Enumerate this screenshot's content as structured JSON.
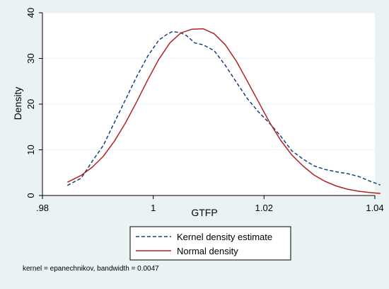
{
  "chart_data": {
    "type": "line",
    "xlabel": "GTFP",
    "ylabel": "Density",
    "xlim": [
      0.98,
      1.04
    ],
    "ylim": [
      0,
      40
    ],
    "x_ticks": [
      0.98,
      1.0,
      1.02,
      1.04
    ],
    "x_tick_labels": [
      ".98",
      "1",
      "1.02",
      "1.04"
    ],
    "y_ticks": [
      0,
      10,
      20,
      30,
      40
    ],
    "y_tick_labels": [
      "0",
      "10",
      "20",
      "30",
      "40"
    ],
    "grid": "horizontal",
    "legend_position": "bottom",
    "note": "kernel = epanechnikov, bandwidth = 0.0047",
    "series": [
      {
        "name": "Kernel density estimate",
        "style": "dashed",
        "color": "#1a3f7a",
        "x": [
          0.9845,
          0.987,
          0.989,
          0.991,
          0.993,
          0.995,
          0.997,
          0.999,
          1.001,
          1.0025,
          1.0035,
          1.005,
          1.006,
          1.0075,
          1.009,
          1.011,
          1.013,
          1.015,
          1.017,
          1.019,
          1.021,
          1.023,
          1.025,
          1.027,
          1.029,
          1.031,
          1.033,
          1.035,
          1.037,
          1.039,
          1.041
        ],
        "y": [
          2.2,
          3.8,
          7.5,
          11.0,
          16.0,
          21.0,
          26.0,
          30.5,
          34.0,
          35.3,
          35.9,
          35.6,
          35.0,
          33.4,
          33.0,
          31.7,
          28.5,
          24.8,
          21.2,
          18.3,
          15.8,
          13.0,
          9.8,
          8.0,
          6.5,
          5.7,
          5.2,
          4.8,
          4.2,
          3.2,
          2.3
        ]
      },
      {
        "name": "Normal density",
        "style": "solid",
        "color": "#b22222",
        "x": [
          0.9845,
          0.987,
          0.989,
          0.991,
          0.993,
          0.995,
          0.997,
          0.999,
          1.001,
          1.003,
          1.005,
          1.007,
          1.009,
          1.011,
          1.013,
          1.015,
          1.017,
          1.019,
          1.021,
          1.023,
          1.025,
          1.027,
          1.029,
          1.031,
          1.033,
          1.035,
          1.037,
          1.039,
          1.041
        ],
        "y": [
          2.9,
          4.4,
          6.2,
          8.6,
          11.9,
          15.9,
          20.5,
          25.3,
          29.8,
          33.4,
          35.6,
          36.4,
          36.5,
          35.4,
          33.0,
          29.4,
          25.0,
          20.5,
          16.0,
          12.1,
          8.9,
          6.5,
          4.5,
          3.1,
          2.1,
          1.4,
          0.95,
          0.65,
          0.45
        ]
      }
    ]
  }
}
